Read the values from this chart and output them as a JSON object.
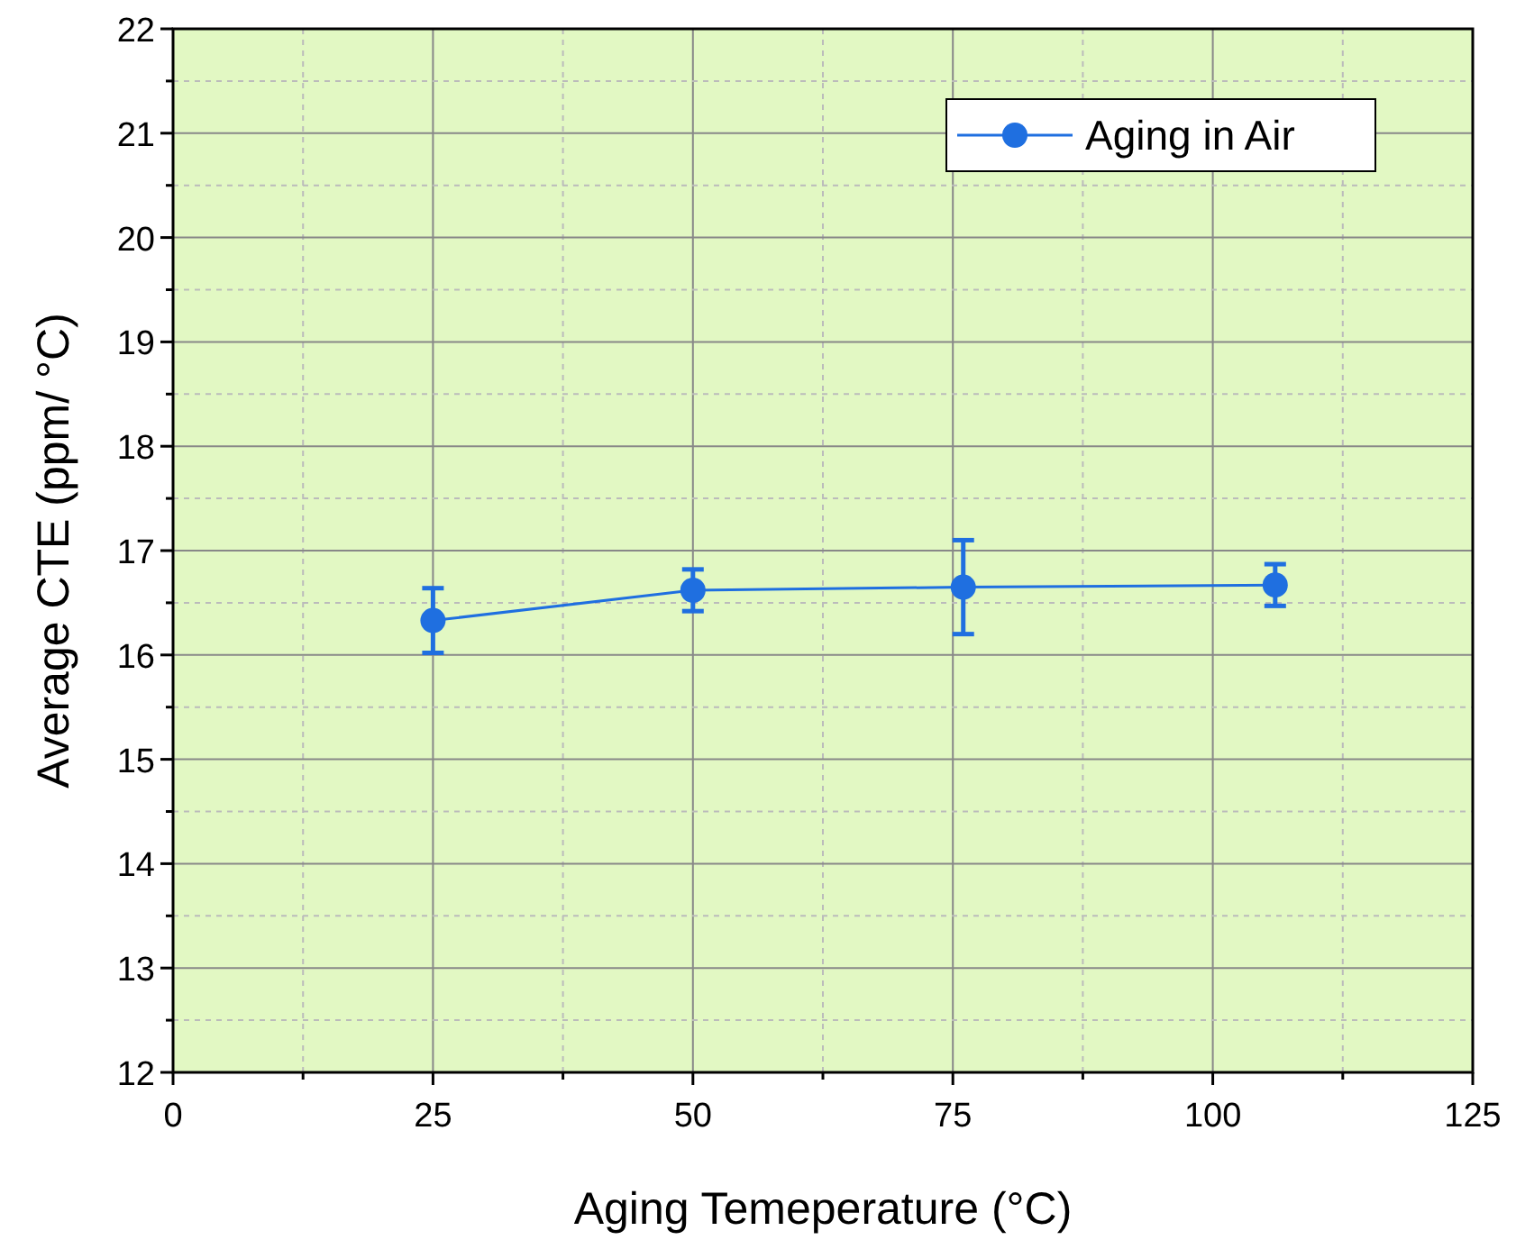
{
  "chart_data": {
    "type": "line",
    "xlabel": "Aging Temeperature (°C)",
    "ylabel": "Average CTE (ppm/ °C)",
    "x": [
      25,
      50,
      76,
      106
    ],
    "series": [
      {
        "name": "Aging in Air",
        "color": "#1f6fe0",
        "values": [
          16.33,
          16.62,
          16.65,
          16.67
        ],
        "errors": [
          0.31,
          0.2,
          0.45,
          0.2
        ]
      }
    ],
    "xlim": [
      0,
      125
    ],
    "xticks": [
      0,
      {
        "value": 12.5,
        "label": null
      },
      25,
      {
        "value": 37.5,
        "label": null
      },
      50,
      {
        "value": 62.5,
        "label": null
      },
      75,
      {
        "value": 87.5,
        "label": null
      },
      100,
      {
        "value": 112.5,
        "label": null
      },
      125
    ],
    "ylim": [
      12,
      22
    ],
    "yticks": [
      12,
      {
        "value": 12.5,
        "label": null
      },
      13,
      {
        "value": 13.5,
        "label": null
      },
      14,
      {
        "value": 14.5,
        "label": null
      },
      15,
      {
        "value": 15.5,
        "label": null
      },
      16,
      {
        "value": 16.5,
        "label": null
      },
      17,
      {
        "value": 17.5,
        "label": null
      },
      18,
      {
        "value": 18.5,
        "label": null
      },
      19,
      {
        "value": 19.5,
        "label": null
      },
      20,
      {
        "value": 20.5,
        "label": null
      },
      21,
      {
        "value": 21.5,
        "label": null
      },
      22
    ],
    "grid": true,
    "legend": "top right",
    "marker": "circle",
    "line_style": "solid"
  }
}
